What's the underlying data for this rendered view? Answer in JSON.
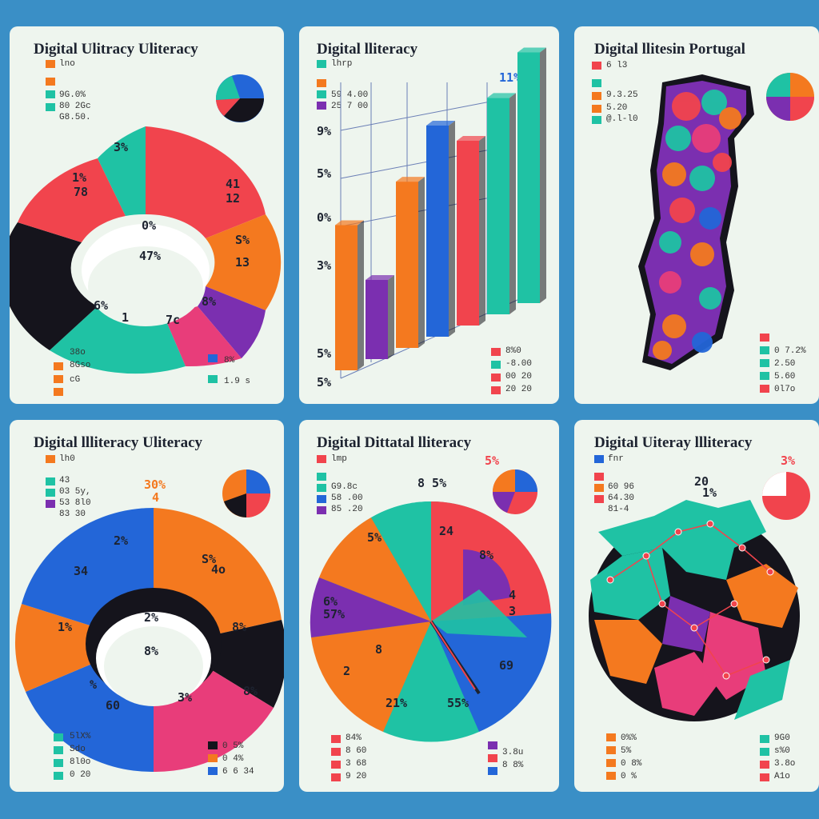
{
  "palette": {
    "teal": "#1fc2a4",
    "orange": "#f4791f",
    "red": "#f1444d",
    "purple": "#7b2fb0",
    "blue": "#2366d8",
    "black": "#15141c",
    "pink": "#e83d7a"
  },
  "cards": [
    {
      "title": "Digital Ulitracy Uliteracy",
      "legend_head": "lno",
      "legend": [
        "9G.0%",
        "80 2Gc",
        "G8.50."
      ],
      "callouts": [
        "1%",
        "78",
        "3%",
        "41",
        "12",
        "S%",
        "13",
        "6%",
        "1",
        "7c",
        "8%",
        "0%",
        "47%"
      ],
      "bottom_left": [
        "38o",
        "8Gso",
        "cG"
      ],
      "bottom_right": [
        "8%",
        "1.9 s"
      ]
    },
    {
      "title": "Digital lliteracy",
      "legend_head": "lhrp",
      "legend": [
        "59 4.00",
        "25 7 00"
      ],
      "callouts": [
        "11%",
        "9%",
        "5%",
        "0%",
        "3%",
        "5%",
        "5%"
      ],
      "bottom_right": [
        "8%0",
        "-8.00",
        "00 20",
        "20 20"
      ],
      "bars": [
        55,
        30,
        63,
        80,
        70,
        82,
        95
      ]
    },
    {
      "title": "Digital llitesin Portugal",
      "legend_head": "6 l3",
      "legend": [
        "9.3.25",
        "5.20",
        "@.l-l0"
      ],
      "bottom_right": [
        "0 7.2%",
        "2.50",
        "5.60",
        "0l7o"
      ]
    },
    {
      "title": "Digital llliteracy Uliteracy",
      "legend_head": "lh0",
      "legend": [
        "43",
        "03 5y,",
        "53 8l0",
        "83 30"
      ],
      "callouts": [
        "30%",
        "4",
        "2%",
        "34",
        "S%",
        "4o",
        "2%",
        "1%",
        "8%",
        "8%",
        "60",
        "%",
        "3%",
        "8%"
      ],
      "bottom_left": [
        "5lX%",
        "Sdo",
        "8l0o",
        "0 20"
      ],
      "bottom_right": [
        "0 5%",
        "0 4%",
        "6 6 34"
      ]
    },
    {
      "title": "Digital Dittatal lliteracy",
      "legend_head": "lmp",
      "legend": [
        "G9.8c",
        "58 .00",
        "85 .20"
      ],
      "callouts": [
        "5%",
        "8 5%",
        "24",
        "5%",
        "8%",
        "6%",
        "57%",
        "4",
        "3",
        "8",
        "2",
        "69",
        "21%",
        "55%"
      ],
      "bottom_left": [
        "84%",
        "8 60",
        "3 68",
        "9 20"
      ],
      "bottom_right": [
        "3.8u",
        "8 8%"
      ]
    },
    {
      "title": "Digital Uiteray llliteracy",
      "legend_head": "fnr",
      "legend": [
        "60 96",
        "64.30",
        "81-4"
      ],
      "callouts": [
        "3%",
        "20",
        "1%"
      ],
      "bottom_left": [
        "0%%",
        "5%",
        "0 8%",
        "0 %"
      ],
      "bottom_right": [
        "9G0",
        "s%0",
        "3.8o",
        "A1o"
      ]
    }
  ]
}
